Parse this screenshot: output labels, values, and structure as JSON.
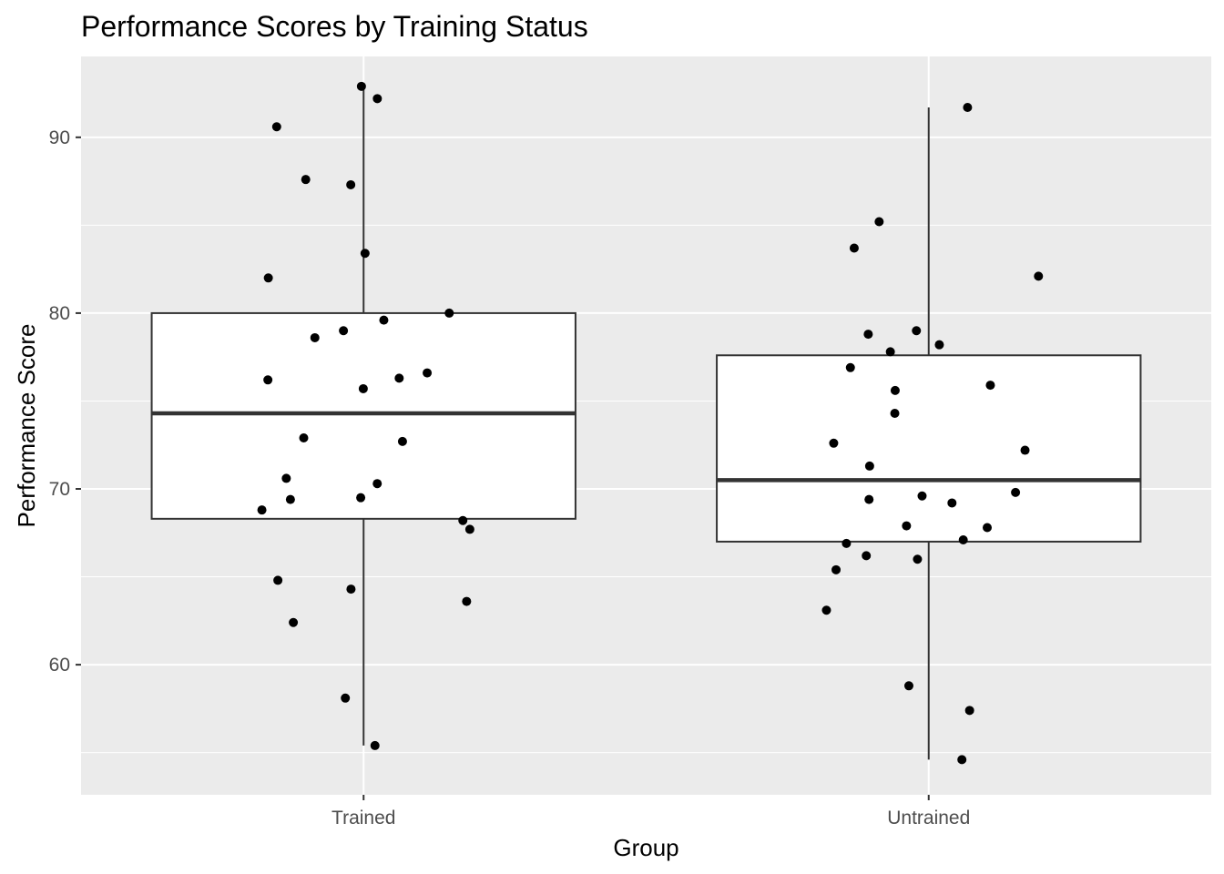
{
  "chart_data": {
    "type": "box",
    "title": "Performance Scores by Training Status",
    "xlabel": "Group",
    "ylabel": "Performance Score",
    "categories": [
      "Trained",
      "Untrained"
    ],
    "ylim": [
      52.6,
      94.6
    ],
    "yticks": [
      60,
      70,
      80,
      90
    ],
    "grid": true,
    "legend": "none",
    "colors": {
      "panel": "#EBEBEB",
      "grid": "#FFFFFF",
      "box_fill": "#FFFFFF",
      "box_line": "#333333",
      "point": "#000000",
      "tick_text": "#4D4D4D"
    },
    "boxes": [
      {
        "group": "Trained",
        "min": 55.4,
        "q1": 68.3,
        "median": 74.3,
        "q3": 80.0,
        "max": 92.9
      },
      {
        "group": "Untrained",
        "min": 54.6,
        "q1": 67.0,
        "median": 70.5,
        "q3": 77.6,
        "max": 91.7
      }
    ],
    "points": [
      {
        "group": "Trained",
        "y": 92.9
      },
      {
        "group": "Trained",
        "y": 92.2
      },
      {
        "group": "Trained",
        "y": 90.6
      },
      {
        "group": "Trained",
        "y": 87.6
      },
      {
        "group": "Trained",
        "y": 87.3
      },
      {
        "group": "Trained",
        "y": 83.4
      },
      {
        "group": "Trained",
        "y": 82.0
      },
      {
        "group": "Trained",
        "y": 80.0
      },
      {
        "group": "Trained",
        "y": 79.6
      },
      {
        "group": "Trained",
        "y": 79.0
      },
      {
        "group": "Trained",
        "y": 78.6
      },
      {
        "group": "Trained",
        "y": 76.6
      },
      {
        "group": "Trained",
        "y": 76.3
      },
      {
        "group": "Trained",
        "y": 76.2
      },
      {
        "group": "Trained",
        "y": 75.7
      },
      {
        "group": "Trained",
        "y": 72.9
      },
      {
        "group": "Trained",
        "y": 72.7
      },
      {
        "group": "Trained",
        "y": 70.6
      },
      {
        "group": "Trained",
        "y": 70.3
      },
      {
        "group": "Trained",
        "y": 69.5
      },
      {
        "group": "Trained",
        "y": 69.4
      },
      {
        "group": "Trained",
        "y": 68.8
      },
      {
        "group": "Trained",
        "y": 68.2
      },
      {
        "group": "Trained",
        "y": 67.7
      },
      {
        "group": "Trained",
        "y": 64.8
      },
      {
        "group": "Trained",
        "y": 64.3
      },
      {
        "group": "Trained",
        "y": 63.6
      },
      {
        "group": "Trained",
        "y": 62.4
      },
      {
        "group": "Trained",
        "y": 58.1
      },
      {
        "group": "Trained",
        "y": 55.4
      },
      {
        "group": "Untrained",
        "y": 91.7
      },
      {
        "group": "Untrained",
        "y": 85.2
      },
      {
        "group": "Untrained",
        "y": 83.7
      },
      {
        "group": "Untrained",
        "y": 82.1
      },
      {
        "group": "Untrained",
        "y": 79.0
      },
      {
        "group": "Untrained",
        "y": 78.8
      },
      {
        "group": "Untrained",
        "y": 78.2
      },
      {
        "group": "Untrained",
        "y": 77.8
      },
      {
        "group": "Untrained",
        "y": 76.9
      },
      {
        "group": "Untrained",
        "y": 75.9
      },
      {
        "group": "Untrained",
        "y": 75.6
      },
      {
        "group": "Untrained",
        "y": 74.3
      },
      {
        "group": "Untrained",
        "y": 72.6
      },
      {
        "group": "Untrained",
        "y": 72.2
      },
      {
        "group": "Untrained",
        "y": 71.3
      },
      {
        "group": "Untrained",
        "y": 69.8
      },
      {
        "group": "Untrained",
        "y": 69.6
      },
      {
        "group": "Untrained",
        "y": 69.4
      },
      {
        "group": "Untrained",
        "y": 69.2
      },
      {
        "group": "Untrained",
        "y": 67.9
      },
      {
        "group": "Untrained",
        "y": 67.8
      },
      {
        "group": "Untrained",
        "y": 67.1
      },
      {
        "group": "Untrained",
        "y": 66.9
      },
      {
        "group": "Untrained",
        "y": 66.2
      },
      {
        "group": "Untrained",
        "y": 66.0
      },
      {
        "group": "Untrained",
        "y": 65.4
      },
      {
        "group": "Untrained",
        "y": 63.1
      },
      {
        "group": "Untrained",
        "y": 58.8
      },
      {
        "group": "Untrained",
        "y": 57.4
      },
      {
        "group": "Untrained",
        "y": 54.6
      }
    ]
  }
}
